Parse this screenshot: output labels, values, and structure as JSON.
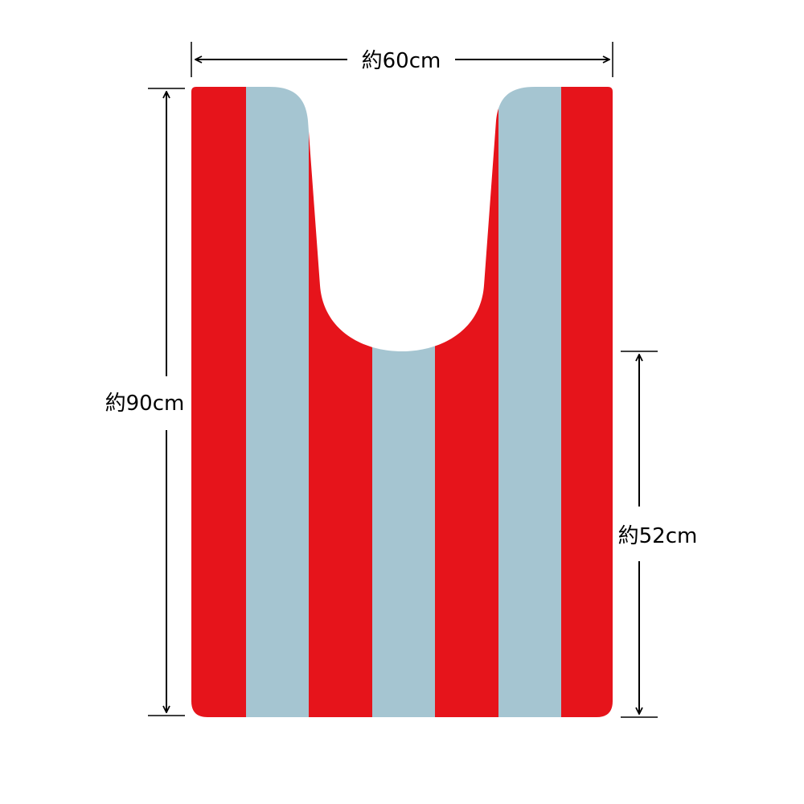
{
  "dimensions": {
    "width_label": "約60cm",
    "length_label": "約90cm",
    "cutout_depth_label": "約52cm"
  },
  "colors": {
    "stripe_red": "#e6141b",
    "stripe_blue": "#a5c5d1",
    "dimension_line": "#000000"
  },
  "stripes": [
    "red",
    "blue",
    "red",
    "blue",
    "red",
    "blue",
    "red"
  ]
}
